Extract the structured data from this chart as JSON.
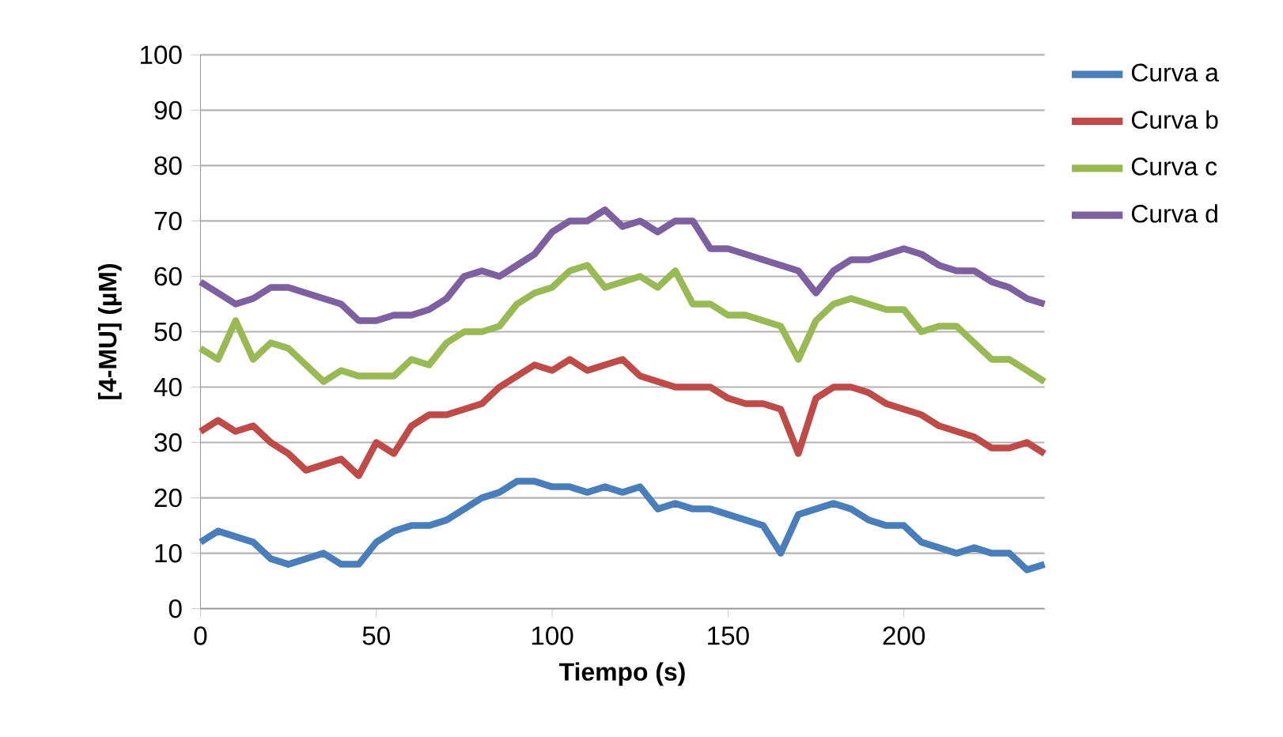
{
  "chart_data": {
    "type": "line",
    "xlabel": "Tiempo (s)",
    "ylabel": "[4-MU] (µM)",
    "x": [
      0,
      5,
      10,
      15,
      20,
      25,
      30,
      35,
      40,
      45,
      50,
      55,
      60,
      65,
      70,
      75,
      80,
      85,
      90,
      95,
      100,
      105,
      110,
      115,
      120,
      125,
      130,
      135,
      140,
      145,
      150,
      155,
      160,
      165,
      170,
      175,
      180,
      185,
      190,
      195,
      200,
      205,
      210,
      215,
      220,
      225,
      230,
      235,
      240
    ],
    "series": [
      {
        "name": "Curva a",
        "color": "#4a7ebb",
        "values": [
          12,
          14,
          13,
          12,
          9,
          8,
          9,
          10,
          8,
          8,
          12,
          14,
          15,
          15,
          16,
          18,
          20,
          21,
          23,
          23,
          22,
          22,
          21,
          22,
          21,
          22,
          18,
          19,
          18,
          18,
          17,
          16,
          15,
          10,
          17,
          18,
          19,
          18,
          16,
          15,
          15,
          12,
          11,
          10,
          11,
          10,
          10,
          7,
          8
        ]
      },
      {
        "name": "Curva b",
        "color": "#be4b48",
        "values": [
          32,
          34,
          32,
          33,
          30,
          28,
          25,
          26,
          27,
          24,
          30,
          28,
          33,
          35,
          35,
          36,
          37,
          40,
          42,
          44,
          43,
          45,
          43,
          44,
          45,
          42,
          41,
          40,
          40,
          40,
          38,
          37,
          37,
          36,
          28,
          38,
          40,
          40,
          39,
          37,
          36,
          35,
          33,
          32,
          31,
          29,
          29,
          30,
          28
        ]
      },
      {
        "name": "Curva c",
        "color": "#98b954",
        "values": [
          47,
          45,
          52,
          45,
          48,
          47,
          44,
          41,
          43,
          42,
          42,
          42,
          45,
          44,
          48,
          50,
          50,
          51,
          55,
          57,
          58,
          61,
          62,
          58,
          59,
          60,
          58,
          61,
          55,
          55,
          53,
          53,
          52,
          51,
          45,
          52,
          55,
          56,
          55,
          54,
          54,
          50,
          51,
          51,
          48,
          45,
          45,
          43,
          41
        ]
      },
      {
        "name": "Curva d",
        "color": "#7d60a0",
        "values": [
          59,
          57,
          55,
          56,
          58,
          58,
          57,
          56,
          55,
          52,
          52,
          53,
          53,
          54,
          56,
          60,
          61,
          60,
          62,
          64,
          68,
          70,
          70,
          72,
          69,
          70,
          68,
          70,
          70,
          65,
          65,
          64,
          63,
          62,
          61,
          57,
          61,
          63,
          63,
          64,
          65,
          64,
          62,
          61,
          61,
          59,
          58,
          56,
          55
        ]
      }
    ],
    "xlim": [
      0,
      240
    ],
    "ylim": [
      0,
      100
    ],
    "xticks": [
      0,
      50,
      100,
      150,
      200
    ],
    "yticks": [
      0,
      10,
      20,
      30,
      40,
      50,
      60,
      70,
      80,
      90,
      100
    ],
    "grid": "y",
    "legend": "top right",
    "marker": "none",
    "line_style": "solid"
  }
}
